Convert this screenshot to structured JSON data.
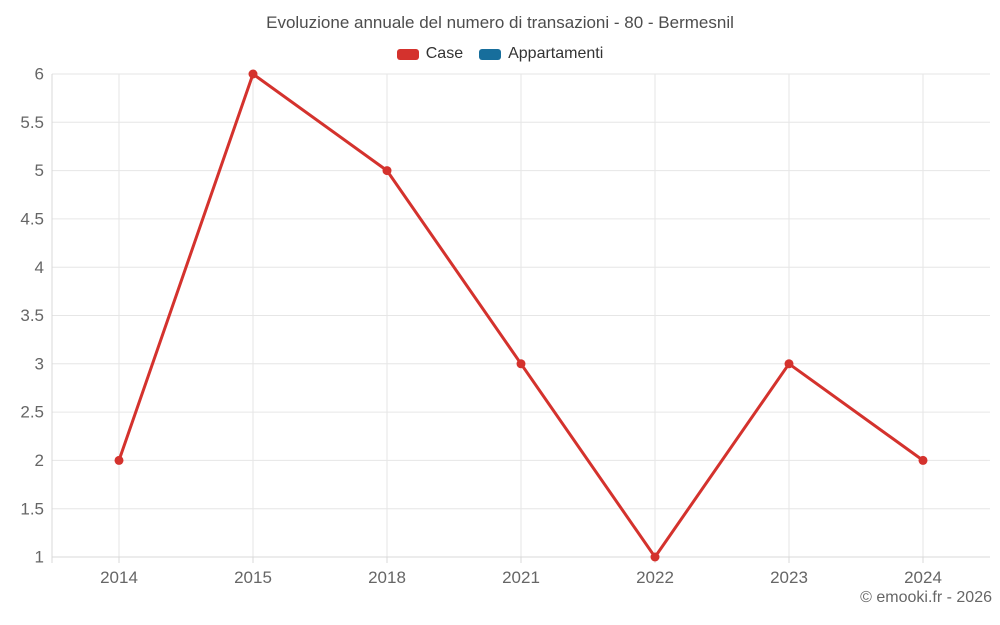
{
  "title": "Evoluzione annuale del numero di transazioni - 80 - Bermesnil",
  "footer": "© emooki.fr - 2026",
  "legend": {
    "items": [
      {
        "label": "Case",
        "color": "#d4322d"
      },
      {
        "label": "Appartamenti",
        "color": "#176e9c"
      }
    ]
  },
  "chart_data": {
    "type": "line",
    "title": "Evoluzione annuale del numero di transazioni - 80 - Bermesnil",
    "categories": [
      "2014",
      "2015",
      "2018",
      "2021",
      "2022",
      "2023",
      "2024"
    ],
    "series": [
      {
        "name": "Case",
        "color": "#d4322d",
        "values": [
          2,
          6,
          5,
          3,
          1,
          3,
          2
        ]
      },
      {
        "name": "Appartamenti",
        "color": "#176e9c",
        "values": []
      }
    ],
    "xlabel": "",
    "ylabel": "",
    "ylim": [
      1,
      6
    ],
    "ytick_step": 0.5,
    "grid": true,
    "legend_position": "top",
    "colors": {
      "grid": "#e6e6e6",
      "axis": "#d8d8d8",
      "tick_label": "#666666",
      "title": "#4d4d4d"
    }
  }
}
